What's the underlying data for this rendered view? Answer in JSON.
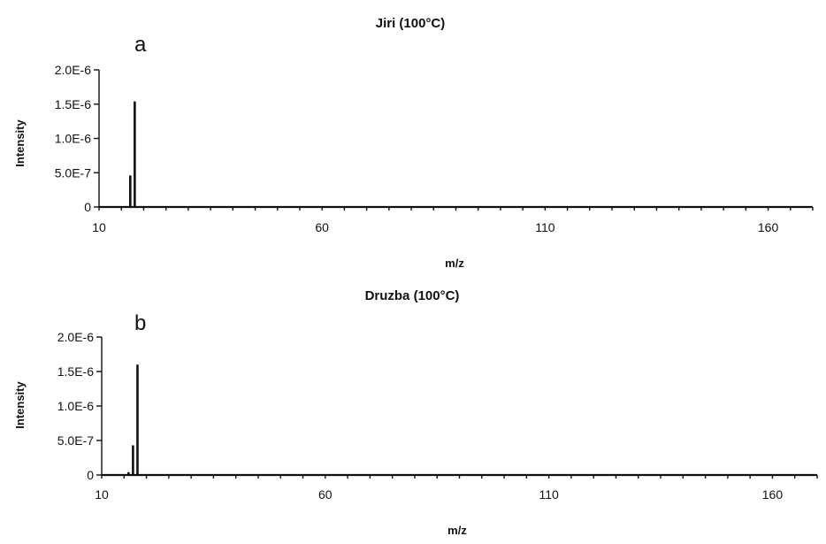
{
  "chart_data": [
    {
      "type": "bar",
      "title": "Jiri (100°C)",
      "panel_label": "a",
      "xlabel": "m/z",
      "ylabel": "Intensity",
      "xlim": [
        10,
        170
      ],
      "ylim": [
        0,
        2e-06
      ],
      "x_ticks": [
        10,
        60,
        110,
        160
      ],
      "x_tick_labels": [
        "10",
        "60",
        "110",
        "160"
      ],
      "y_ticks": [
        0,
        5e-07,
        1e-06,
        1.5e-06,
        2e-06
      ],
      "y_tick_labels": [
        "0",
        "5.0E-7",
        "1.0E-6",
        "1.5E-6",
        "2.0E-6"
      ],
      "grid": false,
      "legend": false,
      "x": [
        16,
        17,
        18
      ],
      "values": [
        1e-08,
        4.6e-07,
        1.54e-06
      ]
    },
    {
      "type": "bar",
      "title": "Druzba (100°C)",
      "panel_label": "b",
      "xlabel": "m/z",
      "ylabel": "Intensity",
      "xlim": [
        10,
        170
      ],
      "ylim": [
        0,
        2e-06
      ],
      "x_ticks": [
        10,
        60,
        110,
        160
      ],
      "x_tick_labels": [
        "10",
        "60",
        "110",
        "160"
      ],
      "y_ticks": [
        0,
        5e-07,
        1e-06,
        1.5e-06,
        2e-06
      ],
      "y_tick_labels": [
        "0",
        "5.0E-7",
        "1.0E-6",
        "1.5E-6",
        "2.0E-6"
      ],
      "grid": false,
      "legend": false,
      "x": [
        16,
        17,
        18
      ],
      "values": [
        4e-08,
        4.3e-07,
        1.6e-06
      ]
    }
  ]
}
